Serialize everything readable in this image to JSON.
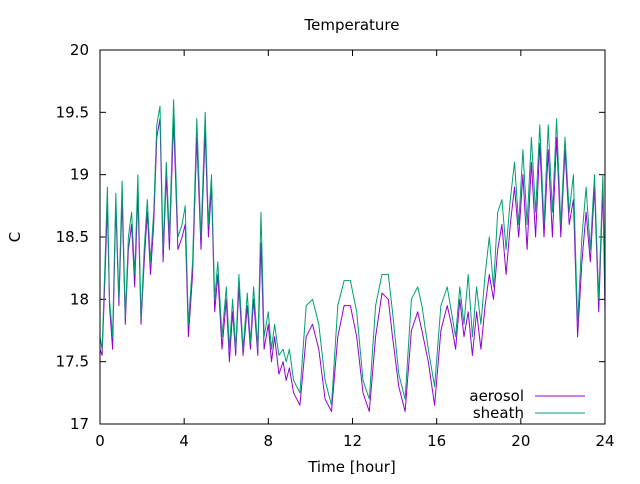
{
  "chart_data": {
    "type": "line",
    "title": "Temperature",
    "xlabel": "Time [hour]",
    "ylabel": "C",
    "xlim": [
      0,
      24
    ],
    "ylim": [
      17,
      20
    ],
    "xticks": [
      "0",
      "4",
      "8",
      "12",
      "16",
      "20",
      "24"
    ],
    "yticks": [
      "17",
      "17.5",
      "18",
      "18.5",
      "19",
      "19.5",
      "20"
    ],
    "grid": false,
    "legend_position": "bottom-right",
    "series": [
      {
        "name": "aerosol",
        "color": "#9400d3",
        "x": [
          0.0,
          0.1,
          0.2,
          0.35,
          0.45,
          0.6,
          0.75,
          0.9,
          1.05,
          1.2,
          1.35,
          1.5,
          1.65,
          1.8,
          1.95,
          2.1,
          2.25,
          2.4,
          2.55,
          2.7,
          2.85,
          3.0,
          3.15,
          3.3,
          3.5,
          3.7,
          3.9,
          4.05,
          4.2,
          4.4,
          4.6,
          4.8,
          5.0,
          5.15,
          5.3,
          5.45,
          5.6,
          5.8,
          6.0,
          6.15,
          6.3,
          6.45,
          6.6,
          6.8,
          7.0,
          7.15,
          7.3,
          7.5,
          7.65,
          7.8,
          8.0,
          8.15,
          8.3,
          8.5,
          8.7,
          8.85,
          9.0,
          9.2,
          9.5,
          9.8,
          10.1,
          10.4,
          10.7,
          11.0,
          11.3,
          11.6,
          11.9,
          12.2,
          12.5,
          12.8,
          13.1,
          13.4,
          13.7,
          13.9,
          14.2,
          14.5,
          14.8,
          15.1,
          15.3,
          15.6,
          15.9,
          16.2,
          16.5,
          16.7,
          16.9,
          17.1,
          17.3,
          17.5,
          17.7,
          17.9,
          18.1,
          18.3,
          18.5,
          18.7,
          18.9,
          19.1,
          19.3,
          19.5,
          19.7,
          19.9,
          20.1,
          20.3,
          20.5,
          20.7,
          20.9,
          21.1,
          21.3,
          21.5,
          21.7,
          21.9,
          22.1,
          22.3,
          22.5,
          22.7,
          22.9,
          23.1,
          23.3,
          23.5,
          23.7,
          23.9,
          24.0
        ],
        "y": [
          17.6,
          17.55,
          18.0,
          18.75,
          17.95,
          17.6,
          18.75,
          17.95,
          18.8,
          17.8,
          18.4,
          18.6,
          18.1,
          18.85,
          17.8,
          18.3,
          18.7,
          18.2,
          18.6,
          19.3,
          19.45,
          18.3,
          19.0,
          18.4,
          19.45,
          18.4,
          18.5,
          18.6,
          17.7,
          18.2,
          19.3,
          18.4,
          19.35,
          18.5,
          18.9,
          17.9,
          18.2,
          17.6,
          18.0,
          17.5,
          17.9,
          17.55,
          18.1,
          17.55,
          17.95,
          17.6,
          18.0,
          17.55,
          18.45,
          17.6,
          17.8,
          17.5,
          17.7,
          17.4,
          17.5,
          17.35,
          17.45,
          17.25,
          17.15,
          17.7,
          17.8,
          17.6,
          17.2,
          17.1,
          17.7,
          17.95,
          17.95,
          17.7,
          17.25,
          17.1,
          17.7,
          18.05,
          18.0,
          17.7,
          17.3,
          17.1,
          17.75,
          17.9,
          17.75,
          17.5,
          17.15,
          17.75,
          17.95,
          17.8,
          17.6,
          18.0,
          17.7,
          17.9,
          17.55,
          17.9,
          17.6,
          17.95,
          18.2,
          18.0,
          18.4,
          18.6,
          18.2,
          18.6,
          18.9,
          18.5,
          19.0,
          18.4,
          19.1,
          18.5,
          19.25,
          18.5,
          19.2,
          18.5,
          19.3,
          18.5,
          19.2,
          18.6,
          18.8,
          17.7,
          18.3,
          18.7,
          18.3,
          18.9,
          17.9,
          18.9,
          17.9
        ]
      },
      {
        "name": "sheath",
        "color": "#009e73",
        "x": [
          0.0,
          0.1,
          0.2,
          0.35,
          0.45,
          0.6,
          0.75,
          0.9,
          1.05,
          1.2,
          1.35,
          1.5,
          1.65,
          1.8,
          1.95,
          2.1,
          2.25,
          2.4,
          2.55,
          2.7,
          2.85,
          3.0,
          3.15,
          3.3,
          3.5,
          3.7,
          3.9,
          4.05,
          4.2,
          4.4,
          4.6,
          4.8,
          5.0,
          5.15,
          5.3,
          5.45,
          5.6,
          5.8,
          6.0,
          6.15,
          6.3,
          6.45,
          6.6,
          6.8,
          7.0,
          7.15,
          7.3,
          7.5,
          7.65,
          7.8,
          8.0,
          8.15,
          8.3,
          8.5,
          8.7,
          8.85,
          9.0,
          9.2,
          9.5,
          9.8,
          10.1,
          10.4,
          10.7,
          11.0,
          11.3,
          11.6,
          11.9,
          12.2,
          12.5,
          12.8,
          13.1,
          13.4,
          13.7,
          13.9,
          14.2,
          14.5,
          14.8,
          15.1,
          15.3,
          15.6,
          15.9,
          16.2,
          16.5,
          16.7,
          16.9,
          17.1,
          17.3,
          17.5,
          17.7,
          17.9,
          18.1,
          18.3,
          18.5,
          18.7,
          18.9,
          19.1,
          19.3,
          19.5,
          19.7,
          19.9,
          20.1,
          20.3,
          20.5,
          20.7,
          20.9,
          21.1,
          21.3,
          21.5,
          21.7,
          21.9,
          22.1,
          22.3,
          22.5,
          22.7,
          22.9,
          23.1,
          23.3,
          23.5,
          23.7,
          23.9,
          24.0
        ],
        "y": [
          17.7,
          17.6,
          18.1,
          18.9,
          18.0,
          17.7,
          18.85,
          18.0,
          18.95,
          17.85,
          18.5,
          18.7,
          18.2,
          19.0,
          17.85,
          18.4,
          18.8,
          18.3,
          18.7,
          19.4,
          19.55,
          18.4,
          19.1,
          18.5,
          19.6,
          18.5,
          18.6,
          18.75,
          17.8,
          18.3,
          19.45,
          18.5,
          19.5,
          18.6,
          19.0,
          18.0,
          18.3,
          17.7,
          18.1,
          17.6,
          18.0,
          17.6,
          18.2,
          17.6,
          18.05,
          17.65,
          18.1,
          17.6,
          18.7,
          17.7,
          17.9,
          17.6,
          17.8,
          17.55,
          17.6,
          17.5,
          17.6,
          17.35,
          17.25,
          17.95,
          18.0,
          17.8,
          17.35,
          17.15,
          17.95,
          18.15,
          18.15,
          17.9,
          17.35,
          17.2,
          17.95,
          18.2,
          18.2,
          17.9,
          17.4,
          17.2,
          18.0,
          18.1,
          17.95,
          17.6,
          17.3,
          17.95,
          18.1,
          17.9,
          17.7,
          18.1,
          17.8,
          18.2,
          17.7,
          18.1,
          17.8,
          18.2,
          18.5,
          18.1,
          18.7,
          18.8,
          18.4,
          18.8,
          19.1,
          18.6,
          19.2,
          18.6,
          19.3,
          18.7,
          19.4,
          18.6,
          19.4,
          18.7,
          19.45,
          18.6,
          19.3,
          18.7,
          19.0,
          17.8,
          18.5,
          18.9,
          18.4,
          19.0,
          18.0,
          19.0,
          18.0
        ]
      }
    ]
  }
}
